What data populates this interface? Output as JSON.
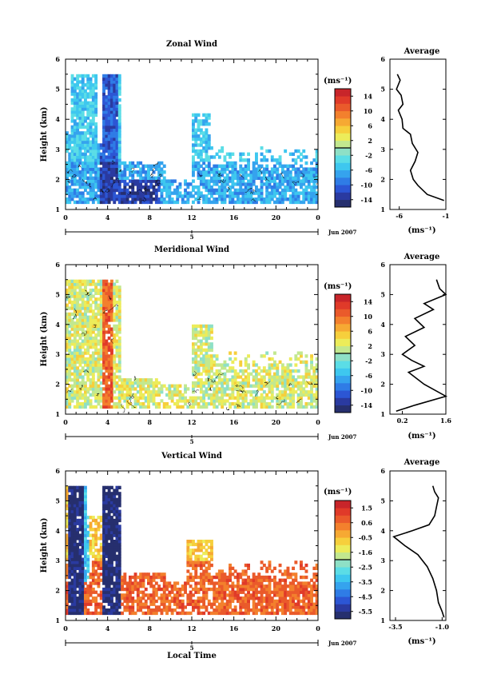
{
  "chart_data": [
    {
      "type": "heatmap",
      "title": "Zonal Wind",
      "ylabel": "Height (km)",
      "xlim": [
        0,
        24
      ],
      "ylim": [
        1,
        6
      ],
      "x_ticks": [
        "0",
        "4",
        "8",
        "12",
        "16",
        "20",
        "0"
      ],
      "y_ticks": [
        "1",
        "2",
        "3",
        "4",
        "5",
        "6"
      ],
      "date_marker": "5",
      "date_label": "Jun 2007",
      "colorbar": {
        "unit_label": "(ms⁻¹)",
        "labels": [
          "14",
          "10",
          "6",
          "2",
          "-2",
          "-6",
          "-10",
          "-14"
        ],
        "range": [
          -16,
          16
        ]
      },
      "average": {
        "title": "Average",
        "xlabel": "(ms⁻¹)",
        "x_ticks": [
          "-6",
          "-1"
        ],
        "xlim": [
          -7,
          -1
        ],
        "heights": [
          1.3,
          1.5,
          1.8,
          2.0,
          2.3,
          2.6,
          2.9,
          3.2,
          3.5,
          3.7,
          4.0,
          4.3,
          4.5,
          4.8,
          5.0,
          5.3,
          5.5
        ],
        "values": [
          -1.2,
          -3.0,
          -4.0,
          -4.5,
          -4.8,
          -4.3,
          -4.0,
          -4.6,
          -4.8,
          -5.6,
          -5.7,
          -6.1,
          -5.6,
          -5.8,
          -6.3,
          -5.9,
          -6.2
        ]
      }
    },
    {
      "type": "heatmap",
      "title": "Meridional Wind",
      "ylabel": "Height (km)",
      "xlim": [
        0,
        24
      ],
      "ylim": [
        1,
        6
      ],
      "x_ticks": [
        "0",
        "4",
        "8",
        "12",
        "16",
        "20",
        "0"
      ],
      "y_ticks": [
        "1",
        "2",
        "3",
        "4",
        "5",
        "6"
      ],
      "date_marker": "5",
      "date_label": "Jun 2007",
      "colorbar": {
        "unit_label": "(ms⁻¹)",
        "labels": [
          "14",
          "10",
          "6",
          "2",
          "-2",
          "-6",
          "-10",
          "-14"
        ],
        "range": [
          -16,
          16
        ]
      },
      "average": {
        "title": "Average",
        "xlabel": "(ms⁻¹)",
        "x_ticks": [
          "0.2",
          "1.6"
        ],
        "xlim": [
          -0.2,
          1.6
        ],
        "heights": [
          1.1,
          1.3,
          1.6,
          2.0,
          2.4,
          2.6,
          2.8,
          3.0,
          3.3,
          3.6,
          3.9,
          4.2,
          4.5,
          4.7,
          5.0,
          5.2,
          5.5
        ],
        "values": [
          0.0,
          0.6,
          1.6,
          0.9,
          0.4,
          0.9,
          0.5,
          0.2,
          0.6,
          0.3,
          0.9,
          0.6,
          1.2,
          0.9,
          1.6,
          1.4,
          1.3
        ]
      }
    },
    {
      "type": "heatmap",
      "title": "Vertical Wind",
      "ylabel": "Height (km)",
      "xlabel": "Local Time",
      "xlim": [
        0,
        24
      ],
      "ylim": [
        1,
        6
      ],
      "x_ticks": [
        "0",
        "4",
        "8",
        "12",
        "16",
        "20",
        "0"
      ],
      "y_ticks": [
        "1",
        "2",
        "3",
        "4",
        "5",
        "6"
      ],
      "date_marker": "5",
      "date_label": "Jun 2007",
      "colorbar": {
        "unit_label": "(ms⁻¹)",
        "labels": [
          "1.5",
          "0.6",
          "-0.5",
          "-1.6",
          "-2.5",
          "-3.5",
          "-4.5",
          "-5.5"
        ],
        "range": [
          -6,
          2
        ]
      },
      "average": {
        "title": "Average",
        "xlabel": "(ms⁻¹)",
        "x_ticks": [
          "-3.5",
          "-1.0"
        ],
        "xlim": [
          -3.8,
          -0.8
        ],
        "heights": [
          1.1,
          1.3,
          1.6,
          2.0,
          2.4,
          2.8,
          3.2,
          3.5,
          3.8,
          4.0,
          4.2,
          4.5,
          4.8,
          5.1,
          5.3,
          5.5
        ],
        "values": [
          -0.9,
          -1.0,
          -1.2,
          -1.3,
          -1.5,
          -1.8,
          -2.3,
          -3.0,
          -3.6,
          -2.6,
          -1.7,
          -1.4,
          -1.3,
          -1.2,
          -1.4,
          -1.5
        ]
      }
    }
  ]
}
